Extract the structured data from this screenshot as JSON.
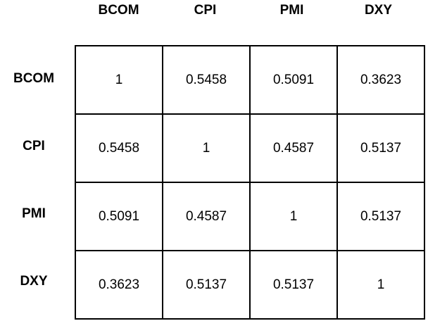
{
  "chart_data": {
    "type": "table",
    "columns": [
      "BCOM",
      "CPI",
      "PMI",
      "DXY"
    ],
    "rows": [
      {
        "label": "BCOM",
        "values": [
          "1",
          "0.5458",
          "0.5091",
          "0.3623"
        ]
      },
      {
        "label": "CPI",
        "values": [
          "0.5458",
          "1",
          "0.4587",
          "0.5137"
        ]
      },
      {
        "label": "PMI",
        "values": [
          "0.5091",
          "0.4587",
          "1",
          "0.5137"
        ]
      },
      {
        "label": "DXY",
        "values": [
          "0.3623",
          "0.5137",
          "0.5137",
          "1"
        ]
      }
    ]
  }
}
